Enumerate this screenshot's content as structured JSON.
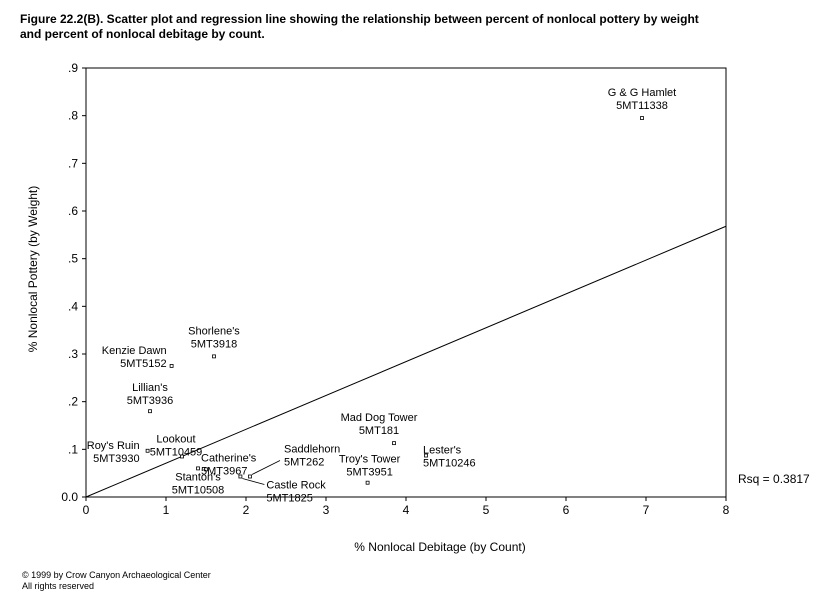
{
  "title": {
    "line1": "Figure 22.2(B).  Scatter plot and regression line showing the relationship between percent of nonlocal pottery by weight",
    "line2": "and percent of nonlocal debitage by count."
  },
  "copyright": {
    "line1": "© 1999 by Crow Canyon Archaeological Center",
    "line2": "All rights reserved"
  },
  "chart_data": {
    "type": "scatter",
    "title": "Figure 22.2(B).  Scatter plot and regression line showing the relationship between percent of nonlocal pottery by weight and percent of nonlocal debitage by count.",
    "xlabel": "% Nonlocal Debitage (by Count)",
    "ylabel": "% Nonlocal Pottery (by Weight)",
    "xlim": [
      0,
      8
    ],
    "ylim": [
      0,
      0.9
    ],
    "x_ticks": [
      "0",
      "1",
      "2",
      "3",
      "4",
      "5",
      "6",
      "7",
      "8"
    ],
    "y_ticks": [
      "0.0",
      ".1",
      ".2",
      ".3",
      ".4",
      ".5",
      ".6",
      ".7",
      ".8",
      ".9"
    ],
    "grid": false,
    "points": [
      {
        "x": 6.95,
        "y": 0.795,
        "label1": "G & G Hamlet",
        "label2": "5MT11338"
      },
      {
        "x": 1.6,
        "y": 0.295,
        "label1": "Shorlene's",
        "label2": "5MT3918"
      },
      {
        "x": 1.07,
        "y": 0.275,
        "label1": "Kenzie Dawn",
        "label2": "5MT5152"
      },
      {
        "x": 0.8,
        "y": 0.18,
        "label1": "Lillian's",
        "label2": "5MT3936"
      },
      {
        "x": 3.85,
        "y": 0.113,
        "label1": "Mad Dog Tower",
        "label2": "5MT181"
      },
      {
        "x": 0.77,
        "y": 0.097,
        "label1": "Roy's Ruin",
        "label2": "5MT3930"
      },
      {
        "x": 1.2,
        "y": 0.085,
        "label1": "Lookout",
        "label2": "5MT10459"
      },
      {
        "x": 4.25,
        "y": 0.087,
        "label1": "Lester's",
        "label2": "5MT10246"
      },
      {
        "x": 1.5,
        "y": 0.058,
        "label1": "Catherine's",
        "label2": "5MT3967"
      },
      {
        "x": 1.4,
        "y": 0.06,
        "label1": "Stanton's",
        "label2": "5MT10508"
      },
      {
        "x": 2.05,
        "y": 0.043,
        "label1": "Saddlehorn",
        "label2": "5MT262"
      },
      {
        "x": 1.93,
        "y": 0.043,
        "label1": "Castle Rock",
        "label2": "5MT1825"
      },
      {
        "x": 3.52,
        "y": 0.03,
        "label1": "Troy's Tower",
        "label2": "5MT3951"
      }
    ],
    "regression": {
      "x": [
        0,
        8
      ],
      "y": [
        0,
        0.568
      ]
    },
    "annotation": "Rsq = 0.3817"
  }
}
